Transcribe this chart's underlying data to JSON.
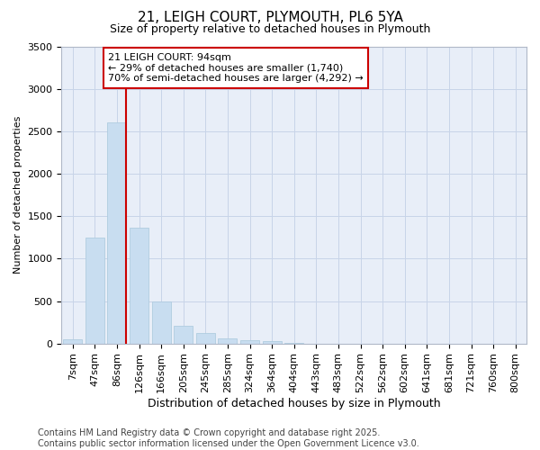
{
  "title": "21, LEIGH COURT, PLYMOUTH, PL6 5YA",
  "subtitle": "Size of property relative to detached houses in Plymouth",
  "xlabel": "Distribution of detached houses by size in Plymouth",
  "ylabel": "Number of detached properties",
  "categories": [
    "7sqm",
    "47sqm",
    "86sqm",
    "126sqm",
    "166sqm",
    "205sqm",
    "245sqm",
    "285sqm",
    "324sqm",
    "364sqm",
    "404sqm",
    "443sqm",
    "483sqm",
    "522sqm",
    "562sqm",
    "602sqm",
    "641sqm",
    "681sqm",
    "721sqm",
    "760sqm",
    "800sqm"
  ],
  "values": [
    50,
    1250,
    2600,
    1360,
    500,
    210,
    120,
    60,
    40,
    25,
    5,
    0,
    0,
    0,
    0,
    0,
    0,
    0,
    0,
    0,
    0
  ],
  "bar_color": "#c8ddf0",
  "bar_edge_color": "#b0ccdf",
  "grid_color": "#c8d4e8",
  "background_color": "#e8eef8",
  "vline_color": "#cc0000",
  "annotation_text": "21 LEIGH COURT: 94sqm\n← 29% of detached houses are smaller (1,740)\n70% of semi-detached houses are larger (4,292) →",
  "annotation_box_edgecolor": "#cc0000",
  "ylim": [
    0,
    3500
  ],
  "yticks": [
    0,
    500,
    1000,
    1500,
    2000,
    2500,
    3000,
    3500
  ],
  "footer": "Contains HM Land Registry data © Crown copyright and database right 2025.\nContains public sector information licensed under the Open Government Licence v3.0.",
  "title_fontsize": 11,
  "subtitle_fontsize": 9,
  "tick_fontsize": 8,
  "ylabel_fontsize": 8,
  "xlabel_fontsize": 9,
  "footer_fontsize": 7
}
